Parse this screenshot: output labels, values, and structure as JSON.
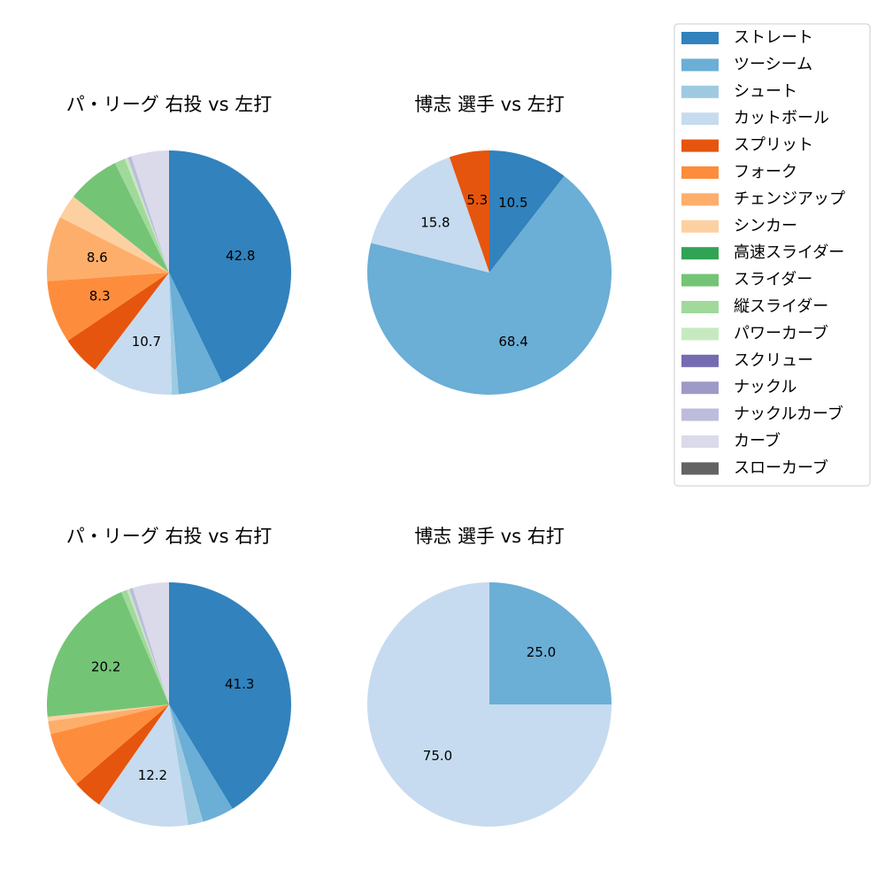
{
  "pitch_types": [
    {
      "name": "ストレート",
      "color": "#3182bd"
    },
    {
      "name": "ツーシーム",
      "color": "#6baed6"
    },
    {
      "name": "シュート",
      "color": "#9ecae1"
    },
    {
      "name": "カットボール",
      "color": "#c6dbef"
    },
    {
      "name": "スプリット",
      "color": "#e6550d"
    },
    {
      "name": "フォーク",
      "color": "#fd8d3c"
    },
    {
      "name": "チェンジアップ",
      "color": "#fdae6b"
    },
    {
      "name": "シンカー",
      "color": "#fdd0a2"
    },
    {
      "name": "高速スライダー",
      "color": "#31a354"
    },
    {
      "name": "スライダー",
      "color": "#74c476"
    },
    {
      "name": "縦スライダー",
      "color": "#a1d99b"
    },
    {
      "name": "パワーカーブ",
      "color": "#c7e9c0"
    },
    {
      "name": "スクリュー",
      "color": "#756bb1"
    },
    {
      "name": "ナックル",
      "color": "#9e9ac8"
    },
    {
      "name": "ナックルカーブ",
      "color": "#bcbddc"
    },
    {
      "name": "カーブ",
      "color": "#dadaeb"
    },
    {
      "name": "スローカーブ",
      "color": "#636363"
    }
  ],
  "chart_data": [
    {
      "type": "pie",
      "title": "パ・リーグ 右投 vs 左打",
      "slices": [
        {
          "label": "ストレート",
          "value": 42.8,
          "shown": "42.8"
        },
        {
          "label": "ツーシーム",
          "value": 5.9,
          "shown": ""
        },
        {
          "label": "シュート",
          "value": 0.9,
          "shown": ""
        },
        {
          "label": "カットボール",
          "value": 10.7,
          "shown": "10.7"
        },
        {
          "label": "スプリット",
          "value": 5.2,
          "shown": ""
        },
        {
          "label": "フォーク",
          "value": 8.3,
          "shown": "8.3"
        },
        {
          "label": "チェンジアップ",
          "value": 8.6,
          "shown": "8.6"
        },
        {
          "label": "シンカー",
          "value": 3.2,
          "shown": ""
        },
        {
          "label": "スライダー",
          "value": 7.0,
          "shown": ""
        },
        {
          "label": "縦スライダー",
          "value": 1.4,
          "shown": ""
        },
        {
          "label": "パワーカーブ",
          "value": 0.4,
          "shown": ""
        },
        {
          "label": "ナックルカーブ",
          "value": 0.5,
          "shown": ""
        },
        {
          "label": "カーブ",
          "value": 5.0,
          "shown": ""
        }
      ]
    },
    {
      "type": "pie",
      "title": "博志 選手 vs 左打",
      "slices": [
        {
          "label": "ストレート",
          "value": 10.5,
          "shown": "10.5"
        },
        {
          "label": "ツーシーム",
          "value": 68.4,
          "shown": "68.4"
        },
        {
          "label": "カットボール",
          "value": 15.8,
          "shown": "15.8"
        },
        {
          "label": "スプリット",
          "value": 5.3,
          "shown": "5.3"
        }
      ]
    },
    {
      "type": "pie",
      "title": "パ・リーグ 右投 vs 右打",
      "slices": [
        {
          "label": "ストレート",
          "value": 41.3,
          "shown": "41.3"
        },
        {
          "label": "ツーシーム",
          "value": 4.2,
          "shown": ""
        },
        {
          "label": "シュート",
          "value": 2.0,
          "shown": ""
        },
        {
          "label": "カットボール",
          "value": 12.2,
          "shown": "12.2"
        },
        {
          "label": "スプリット",
          "value": 4.0,
          "shown": ""
        },
        {
          "label": "フォーク",
          "value": 7.4,
          "shown": ""
        },
        {
          "label": "チェンジアップ",
          "value": 1.7,
          "shown": ""
        },
        {
          "label": "シンカー",
          "value": 0.6,
          "shown": ""
        },
        {
          "label": "スライダー",
          "value": 20.2,
          "shown": "20.2"
        },
        {
          "label": "縦スライダー",
          "value": 0.8,
          "shown": ""
        },
        {
          "label": "パワーカーブ",
          "value": 0.3,
          "shown": ""
        },
        {
          "label": "ナックルカーブ",
          "value": 0.5,
          "shown": ""
        },
        {
          "label": "カーブ",
          "value": 4.8,
          "shown": ""
        }
      ]
    },
    {
      "type": "pie",
      "title": "博志 選手 vs 右打",
      "slices": [
        {
          "label": "ツーシーム",
          "value": 25.0,
          "shown": "25.0"
        },
        {
          "label": "カットボール",
          "value": 75.0,
          "shown": "75.0"
        }
      ]
    }
  ]
}
